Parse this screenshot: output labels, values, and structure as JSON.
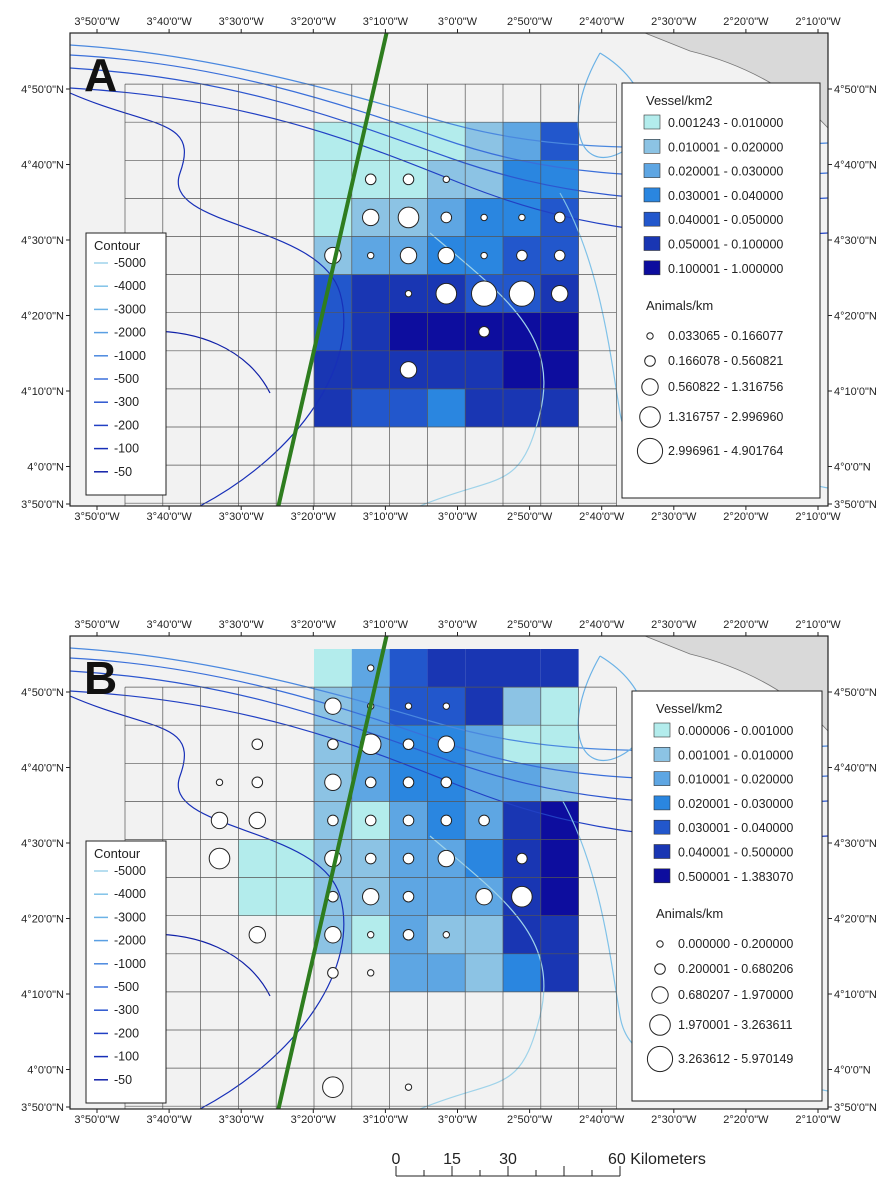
{
  "axes": {
    "lon_labels": [
      "3°50'0\"W",
      "3°40'0\"W",
      "3°30'0\"W",
      "3°20'0\"W",
      "3°10'0\"W",
      "3°0'0\"W",
      "2°50'0\"W",
      "2°40'0\"W",
      "2°30'0\"W",
      "2°20'0\"W",
      "2°10'0\"W"
    ],
    "lat_labels": [
      "4°50'0\"N",
      "4°40'0\"N",
      "4°30'0\"N",
      "4°20'0\"N",
      "4°10'0\"N",
      "4°0'0\"N",
      "3°50'0\"N"
    ]
  },
  "colors": {
    "land": "#d9d9d9",
    "sea": "#f2f2f2",
    "track_line": "#2e7d1f",
    "vessel_classes": [
      "#b3ecec",
      "#8cc3e4",
      "#5ea6e3",
      "#2a86e0",
      "#2257cc",
      "#1936b3",
      "#0d0d9e"
    ],
    "contour_lines": [
      "#9fd3ea",
      "#80c2e8",
      "#6bb2e6",
      "#5a9fe3",
      "#4a88df",
      "#3a6fda",
      "#2c56cf",
      "#2140c4",
      "#172fb8",
      "#1020a8"
    ]
  },
  "panels": [
    {
      "letter": "A",
      "vessel_legend_title": "Vessel/km2",
      "vessel_classes": [
        "0.001243 - 0.010000",
        "0.010001 - 0.020000",
        "0.020001 - 0.030000",
        "0.030001 - 0.040000",
        "0.040001 - 0.050000",
        "0.050001 - 0.100000",
        "0.100001 - 1.000000"
      ],
      "animals_legend_title": "Animals/km",
      "animal_classes": [
        "0.033065 - 0.166077",
        "0.166078 - 0.560821",
        "0.560822 - 1.316756",
        "1.316757 - 2.996960",
        "2.996961 - 4.901764"
      ],
      "vessel_grid": [
        [
          -1,
          -1,
          -1,
          -1,
          -1,
          -1,
          -1,
          -1,
          -1,
          -1,
          -1,
          -1
        ],
        [
          -1,
          -1,
          -1,
          -1,
          -1,
          -1,
          -1,
          -1,
          -1,
          -1,
          -1,
          -1
        ],
        [
          -1,
          -1,
          -1,
          -1,
          -1,
          0,
          0,
          0,
          0,
          1,
          2,
          4
        ],
        [
          -1,
          -1,
          -1,
          -1,
          -1,
          0,
          0,
          0,
          1,
          1,
          3,
          3
        ],
        [
          -1,
          -1,
          -1,
          -1,
          -1,
          0,
          1,
          1,
          2,
          3,
          3,
          4
        ],
        [
          -1,
          -1,
          -1,
          -1,
          -1,
          1,
          2,
          2,
          3,
          3,
          4,
          4
        ],
        [
          -1,
          -1,
          -1,
          -1,
          -1,
          4,
          5,
          5,
          5,
          4,
          4,
          5
        ],
        [
          -1,
          -1,
          -1,
          -1,
          -1,
          4,
          5,
          6,
          6,
          6,
          6,
          6
        ],
        [
          -1,
          -1,
          -1,
          -1,
          -1,
          5,
          5,
          5,
          5,
          5,
          6,
          6
        ],
        [
          -1,
          -1,
          -1,
          -1,
          -1,
          5,
          4,
          4,
          3,
          5,
          5,
          5
        ],
        [
          -1,
          -1,
          -1,
          -1,
          -1,
          -1,
          -1,
          -1,
          -1,
          -1,
          -1,
          -1
        ],
        [
          -1,
          -1,
          -1,
          -1,
          -1,
          -1,
          -1,
          -1,
          -1,
          -1,
          -1,
          -1
        ],
        [
          -1,
          -1,
          -1,
          -1,
          -1,
          -1,
          -1,
          -1,
          -1,
          -1,
          -1,
          -1
        ],
        [
          -1,
          -1,
          -1,
          -1,
          -1,
          -1,
          -1,
          -1,
          -1,
          -1,
          -1,
          -1
        ]
      ],
      "animals": [
        {
          "row": 3,
          "col": 6,
          "class": 1
        },
        {
          "row": 3,
          "col": 7,
          "class": 1
        },
        {
          "row": 3,
          "col": 8,
          "class": 0
        },
        {
          "row": 4,
          "col": 6,
          "class": 2
        },
        {
          "row": 4,
          "col": 7,
          "class": 3
        },
        {
          "row": 4,
          "col": 8,
          "class": 1
        },
        {
          "row": 4,
          "col": 9,
          "class": 0
        },
        {
          "row": 4,
          "col": 10,
          "class": 0
        },
        {
          "row": 4,
          "col": 11,
          "class": 1
        },
        {
          "row": 5,
          "col": 5,
          "class": 2
        },
        {
          "row": 5,
          "col": 6,
          "class": 0
        },
        {
          "row": 5,
          "col": 7,
          "class": 2
        },
        {
          "row": 5,
          "col": 8,
          "class": 2
        },
        {
          "row": 5,
          "col": 9,
          "class": 0
        },
        {
          "row": 5,
          "col": 10,
          "class": 1
        },
        {
          "row": 5,
          "col": 11,
          "class": 1
        },
        {
          "row": 6,
          "col": 7,
          "class": 0
        },
        {
          "row": 6,
          "col": 8,
          "class": 3
        },
        {
          "row": 6,
          "col": 9,
          "class": 4
        },
        {
          "row": 6,
          "col": 10,
          "class": 4
        },
        {
          "row": 6,
          "col": 11,
          "class": 2
        },
        {
          "row": 7,
          "col": 9,
          "class": 1
        },
        {
          "row": 8,
          "col": 7,
          "class": 2
        }
      ],
      "contour_title": "Contour",
      "contour_values": [
        "-5000",
        "-4000",
        "-3000",
        "-2000",
        "-1000",
        "-500",
        "-300",
        "-200",
        "-100",
        "-50"
      ]
    },
    {
      "letter": "B",
      "vessel_legend_title": "Vessel/km2",
      "vessel_classes": [
        "0.000006 - 0.001000",
        "0.001001 - 0.010000",
        "0.010001 - 0.020000",
        "0.020001 - 0.030000",
        "0.030001 - 0.040000",
        "0.040001 - 0.500000",
        "0.500001 - 1.383070"
      ],
      "animals_legend_title": "Animals/km",
      "animal_classes": [
        "0.000000 - 0.200000",
        "0.200001 - 0.680206",
        "0.680207 - 1.970000",
        "1.970001 - 3.263611",
        "3.263612 - 5.970149"
      ],
      "vessel_grid": [
        [
          -1,
          -1,
          -1,
          -1,
          -1,
          -1,
          -1,
          -1,
          -1,
          -1,
          -1,
          -1
        ],
        [
          -1,
          -1,
          -1,
          -1,
          -1,
          -1,
          -1,
          -1,
          -1,
          -1,
          -1,
          -1
        ],
        [
          -1,
          -1,
          -1,
          -1,
          -1,
          -1,
          -1,
          -1,
          -1,
          -1,
          -1,
          -1
        ],
        [
          -1,
          -1,
          -1,
          -1,
          -1,
          -1,
          -1,
          -1,
          -1,
          -1,
          -1,
          -1
        ],
        [
          -1,
          -1,
          -1,
          -1,
          -1,
          -1,
          -1,
          -1,
          -1,
          -1,
          -1,
          -1
        ],
        [
          -1,
          -1,
          -1,
          -1,
          -1,
          -1,
          -1,
          -1,
          -1,
          -1,
          -1,
          -1
        ],
        [
          -1,
          -1,
          -1,
          -1,
          -1,
          -1,
          -1,
          -1,
          -1,
          -1,
          -1,
          -1
        ],
        [
          -1,
          -1,
          -1,
          -1,
          -1,
          -1,
          -1,
          -1,
          -1,
          -1,
          -1,
          -1
        ],
        [
          -1,
          -1,
          -1,
          -1,
          -1,
          -1,
          -1,
          -1,
          -1,
          -1,
          -1,
          -1
        ],
        [
          -1,
          -1,
          -1,
          -1,
          -1,
          -1,
          -1,
          -1,
          -1,
          -1,
          -1,
          -1
        ],
        [
          -1,
          -1,
          -1,
          -1,
          -1,
          -1,
          -1,
          -1,
          -1,
          -1,
          -1,
          -1
        ],
        [
          -1,
          -1,
          -1,
          -1,
          -1,
          -1,
          -1,
          -1,
          -1,
          -1,
          -1,
          -1
        ],
        [
          -1,
          -1,
          -1,
          -1,
          -1,
          -1,
          -1,
          -1,
          -1,
          -1,
          -1,
          -1
        ],
        [
          -1,
          -1,
          -1,
          -1,
          -1,
          -1,
          -1,
          -1,
          -1,
          -1,
          -1,
          -1
        ]
      ],
      "vessel_grid_b": [
        [
          -1,
          -1,
          -1,
          -1,
          -1,
          0,
          2,
          4,
          5,
          5,
          5,
          5
        ],
        [
          -1,
          -1,
          -1,
          -1,
          -1,
          1,
          2,
          4,
          4,
          5,
          1,
          0
        ],
        [
          -1,
          -1,
          -1,
          -1,
          -1,
          1,
          2,
          3,
          3,
          2,
          0,
          0
        ],
        [
          -1,
          -1,
          -1,
          -1,
          -1,
          1,
          2,
          3,
          3,
          2,
          2,
          1
        ],
        [
          -1,
          -1,
          -1,
          -1,
          -1,
          1,
          0,
          2,
          3,
          2,
          5,
          6
        ],
        [
          -1,
          -1,
          -1,
          0,
          0,
          1,
          1,
          2,
          2,
          3,
          5,
          6
        ],
        [
          -1,
          -1,
          -1,
          0,
          0,
          1,
          1,
          2,
          2,
          2,
          5,
          6
        ],
        [
          -1,
          -1,
          -1,
          -1,
          -1,
          1,
          0,
          2,
          1,
          1,
          5,
          5
        ],
        [
          -1,
          -1,
          -1,
          -1,
          -1,
          -1,
          -1,
          2,
          2,
          1,
          3,
          5
        ]
      ],
      "animals": [
        {
          "row": 0,
          "col": 6,
          "class": 0
        },
        {
          "row": 1,
          "col": 5,
          "class": 2
        },
        {
          "row": 1,
          "col": 6,
          "class": 0
        },
        {
          "row": 1,
          "col": 7,
          "class": 0
        },
        {
          "row": 1,
          "col": 8,
          "class": 0
        },
        {
          "row": 2,
          "col": 3,
          "class": 1
        },
        {
          "row": 2,
          "col": 5,
          "class": 1
        },
        {
          "row": 2,
          "col": 6,
          "class": 3
        },
        {
          "row": 2,
          "col": 7,
          "class": 1
        },
        {
          "row": 2,
          "col": 8,
          "class": 2
        },
        {
          "row": 3,
          "col": 2,
          "class": 0
        },
        {
          "row": 3,
          "col": 3,
          "class": 1
        },
        {
          "row": 3,
          "col": 5,
          "class": 2
        },
        {
          "row": 3,
          "col": 6,
          "class": 1
        },
        {
          "row": 3,
          "col": 7,
          "class": 1
        },
        {
          "row": 3,
          "col": 8,
          "class": 1
        },
        {
          "row": 4,
          "col": 2,
          "class": 2
        },
        {
          "row": 4,
          "col": 3,
          "class": 2
        },
        {
          "row": 4,
          "col": 5,
          "class": 1
        },
        {
          "row": 4,
          "col": 6,
          "class": 1
        },
        {
          "row": 4,
          "col": 7,
          "class": 1
        },
        {
          "row": 4,
          "col": 8,
          "class": 1
        },
        {
          "row": 4,
          "col": 9,
          "class": 1
        },
        {
          "row": 5,
          "col": 2,
          "class": 3
        },
        {
          "row": 5,
          "col": 5,
          "class": 2
        },
        {
          "row": 5,
          "col": 6,
          "class": 1
        },
        {
          "row": 5,
          "col": 7,
          "class": 1
        },
        {
          "row": 5,
          "col": 8,
          "class": 2
        },
        {
          "row": 5,
          "col": 10,
          "class": 1
        },
        {
          "row": 6,
          "col": 5,
          "class": 1
        },
        {
          "row": 6,
          "col": 6,
          "class": 2
        },
        {
          "row": 6,
          "col": 7,
          "class": 1
        },
        {
          "row": 6,
          "col": 9,
          "class": 2
        },
        {
          "row": 6,
          "col": 10,
          "class": 3
        },
        {
          "row": 7,
          "col": 3,
          "class": 2
        },
        {
          "row": 7,
          "col": 5,
          "class": 2
        },
        {
          "row": 7,
          "col": 6,
          "class": 0
        },
        {
          "row": 7,
          "col": 7,
          "class": 1
        },
        {
          "row": 7,
          "col": 8,
          "class": 0
        },
        {
          "row": 8,
          "col": 5,
          "class": 1
        },
        {
          "row": 8,
          "col": 6,
          "class": 0
        },
        {
          "row": 11,
          "col": 5,
          "class": 3
        },
        {
          "row": 11,
          "col": 7,
          "class": 0
        }
      ],
      "contour_title": "Contour",
      "contour_values": [
        "-5000",
        "-4000",
        "-3000",
        "-2000",
        "-1000",
        "-500",
        "-300",
        "-200",
        "-100",
        "-50"
      ]
    }
  ],
  "scale_bar": {
    "labels": [
      "0",
      "15",
      "30",
      "60 Kilometers"
    ]
  }
}
